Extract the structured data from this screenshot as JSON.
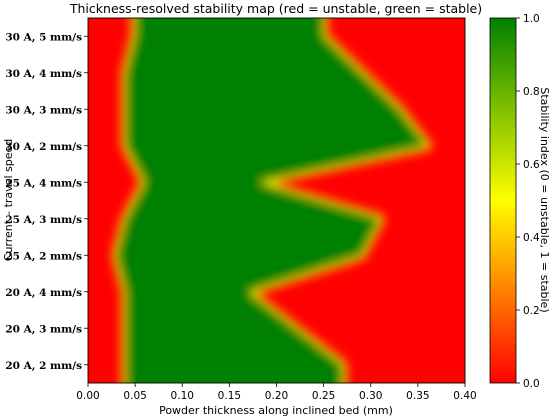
{
  "chart_data": {
    "type": "heatmap",
    "title": "Thickness-resolved stability map (red = unstable, green = stable)",
    "xlabel": "Powder thickness along inclined bed (mm)",
    "ylabel": "Current – travel speed",
    "xlim": [
      0.0,
      0.4
    ],
    "x_ticks": [
      "0.00",
      "0.05",
      "0.10",
      "0.15",
      "0.20",
      "0.25",
      "0.30",
      "0.35",
      "0.40"
    ],
    "categories": [
      "30 A, 5 mm/s",
      "30 A, 4 mm/s",
      "30 A, 3 mm/s",
      "30 A, 2 mm/s",
      "25 A, 4 mm/s",
      "25 A, 3 mm/s",
      "25 A, 2 mm/s",
      "20 A, 4 mm/s",
      "20 A, 3 mm/s",
      "20 A, 2 mm/s"
    ],
    "stable_window_mm": [
      [
        0.05,
        0.25
      ],
      [
        0.04,
        0.29
      ],
      [
        0.04,
        0.33
      ],
      [
        0.04,
        0.36
      ],
      [
        0.06,
        0.18
      ],
      [
        0.04,
        0.31
      ],
      [
        0.03,
        0.29
      ],
      [
        0.04,
        0.17
      ],
      [
        0.04,
        0.22
      ],
      [
        0.04,
        0.27
      ]
    ],
    "colorbar": {
      "label": "Stability index (0 = unstable, 1 = stable)",
      "range": [
        0.0,
        1.0
      ],
      "ticks": [
        "0.0",
        "0.2",
        "0.4",
        "0.6",
        "0.8",
        "1.0"
      ],
      "colors": [
        "#ff0000",
        "#ffff00",
        "#008000"
      ]
    },
    "grid": false
  }
}
